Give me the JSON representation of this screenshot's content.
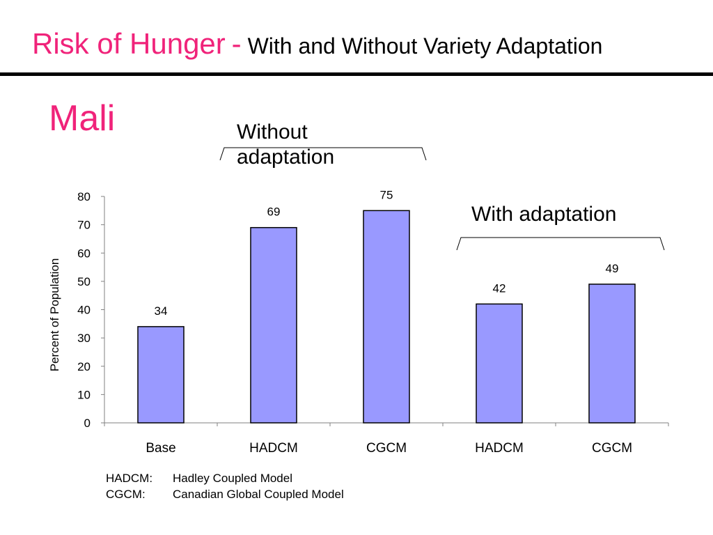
{
  "title": {
    "main": "Risk of Hunger",
    "separator": "-",
    "subtitle": "With and Without Variety Adaptation"
  },
  "region": "Mali",
  "group_labels": [
    "Without adaptation",
    "With adaptation"
  ],
  "legend_notes": [
    {
      "abbr": "HADCM:",
      "text": "Hadley Coupled Model"
    },
    {
      "abbr": "CGCM:",
      "text": "Canadian Global Coupled Model"
    }
  ],
  "colors": {
    "accent": "#f0237a",
    "bar_fill": "#9999ff",
    "bar_stroke": "#000000",
    "axis": "#808080"
  },
  "chart_data": {
    "type": "bar",
    "categories": [
      "Base",
      "HADCM",
      "CGCM",
      "HADCM",
      "CGCM"
    ],
    "values": [
      34,
      69,
      75,
      42,
      49
    ],
    "data_labels": [
      "34",
      "69",
      "75",
      "42",
      "49"
    ],
    "ylabel": "Percent of Population",
    "ylim": [
      0,
      80
    ],
    "yticks": [
      0,
      10,
      20,
      30,
      40,
      50,
      60,
      70,
      80
    ],
    "grid": false,
    "legend": "none"
  }
}
